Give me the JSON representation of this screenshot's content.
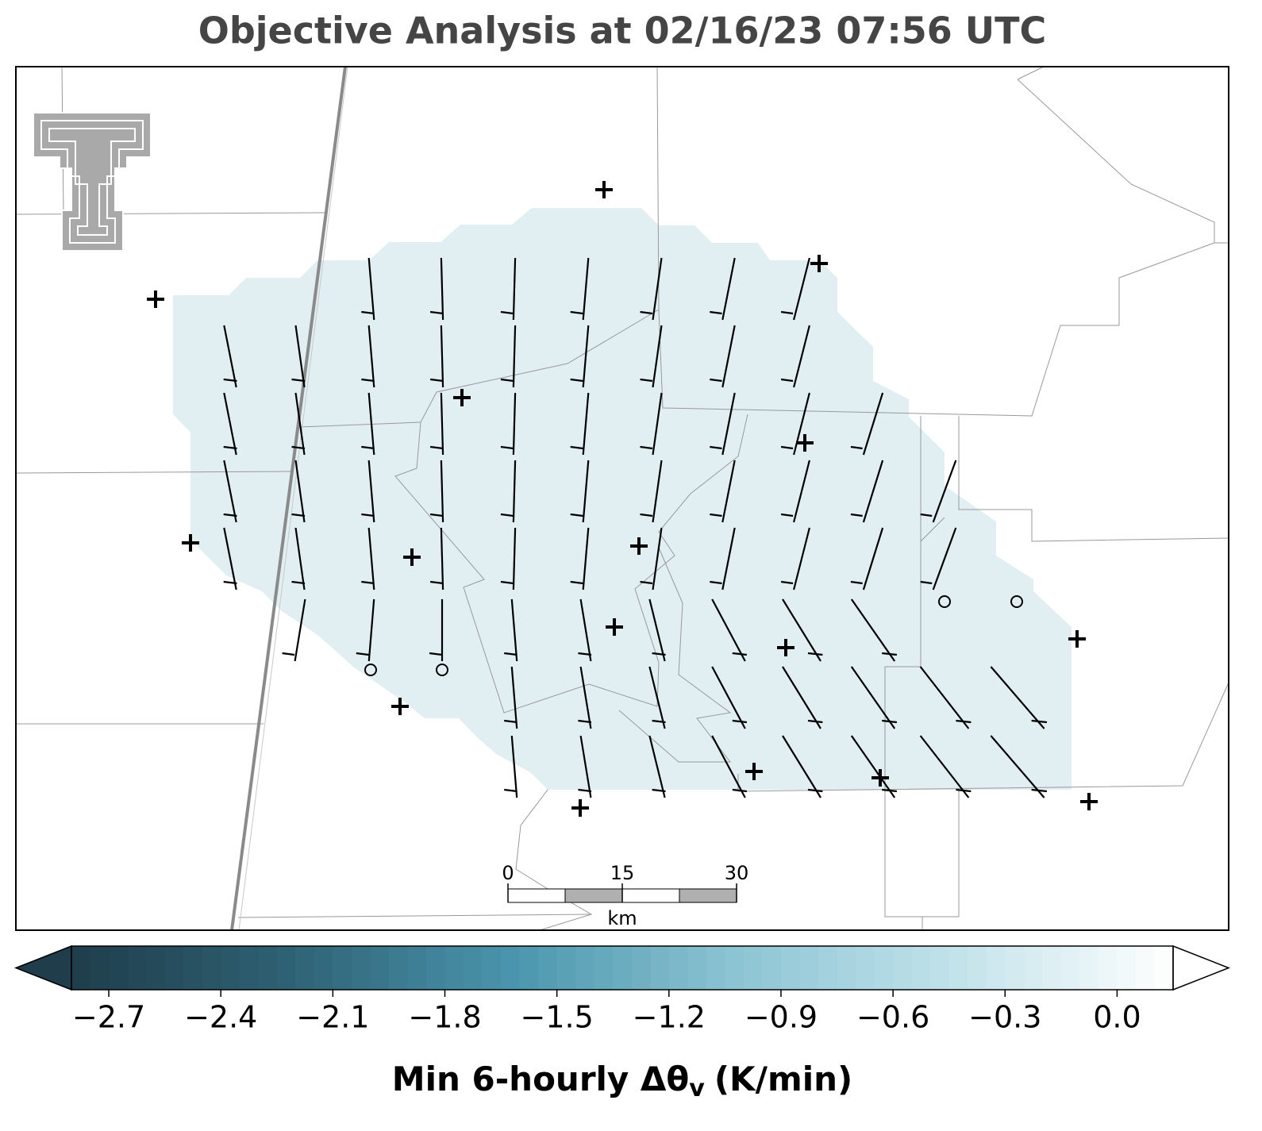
{
  "chart_data": {
    "type": "map",
    "title": "Objective Analysis at 02/16/23 07:56 UTC",
    "colorbar": {
      "label": "Min 6-hourly Δθ",
      "label_subscript": "v",
      "label_units": "(K/min)",
      "clim": [
        -2.8,
        0.15
      ],
      "step": 0.05,
      "extend": "both",
      "colormap": [
        "#1f3d4a",
        "#2f6275",
        "#4a95ad",
        "#8cc4d3",
        "#c1e2ea",
        "#ffffff"
      ],
      "ticks": [
        {
          "value": -2.7,
          "label": "−2.7"
        },
        {
          "value": -2.4,
          "label": "−2.4"
        },
        {
          "value": -2.1,
          "label": "−2.1"
        },
        {
          "value": -1.8,
          "label": "−1.8"
        },
        {
          "value": -1.5,
          "label": "−1.5"
        },
        {
          "value": -1.2,
          "label": "−1.2"
        },
        {
          "value": -0.9,
          "label": "−0.9"
        },
        {
          "value": -0.6,
          "label": "−0.6"
        },
        {
          "value": -0.3,
          "label": "−0.3"
        },
        {
          "value": 0.0,
          "label": "0.0"
        }
      ]
    },
    "scale_bar": {
      "ticks": [
        0,
        15,
        30
      ],
      "unit": "km"
    }
  }
}
